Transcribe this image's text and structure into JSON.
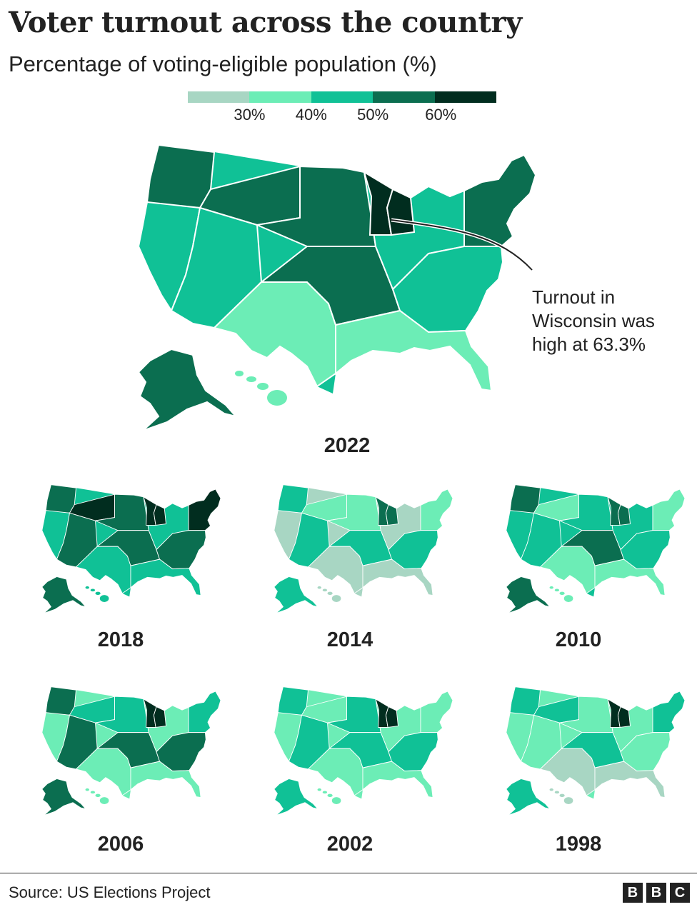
{
  "title": "Voter turnout across the country",
  "subtitle": "Percentage of voting-eligible population (%)",
  "legend": {
    "colors": [
      "#a8d6c3",
      "#6cedb6",
      "#10c196",
      "#0b6e50",
      "#012d1f"
    ],
    "ticks": [
      "30%",
      "40%",
      "50%",
      "60%"
    ]
  },
  "annotation": {
    "text": "Turnout in Wisconsin was high at 63.3%"
  },
  "maps": [
    {
      "year": "2022",
      "palette": [
        "#0b6e50",
        "#10c196",
        "#0b6e50",
        "#10c196",
        "#6cedb6",
        "#0b6e50"
      ],
      "highlight": "#012d1f"
    },
    {
      "year": "2018",
      "palette": [
        "#0b6e50",
        "#10c196",
        "#012d1f",
        "#0b6e50",
        "#10c196",
        "#0b6e50"
      ],
      "highlight": "#012d1f"
    },
    {
      "year": "2014",
      "palette": [
        "#10c196",
        "#a8d6c3",
        "#6cedb6",
        "#10c196",
        "#a8d6c3",
        "#6cedb6"
      ],
      "highlight": "#0b6e50"
    },
    {
      "year": "2010",
      "palette": [
        "#0b6e50",
        "#10c196",
        "#6cedb6",
        "#10c196",
        "#6cedb6",
        "#10c196"
      ],
      "highlight": "#0b6e50"
    },
    {
      "year": "2006",
      "palette": [
        "#0b6e50",
        "#6cedb6",
        "#10c196",
        "#0b6e50",
        "#6cedb6",
        "#10c196"
      ],
      "highlight": "#012d1f"
    },
    {
      "year": "2002",
      "palette": [
        "#10c196",
        "#6cedb6",
        "#6cedb6",
        "#10c196",
        "#6cedb6",
        "#10c196"
      ],
      "highlight": "#012d1f"
    },
    {
      "year": "1998",
      "palette": [
        "#10c196",
        "#6cedb6",
        "#10c196",
        "#6cedb6",
        "#a8d6c3",
        "#6cedb6"
      ],
      "highlight": "#012d1f"
    }
  ],
  "footer": {
    "source": "Source: US Elections Project",
    "logo": [
      "B",
      "B",
      "C"
    ]
  }
}
